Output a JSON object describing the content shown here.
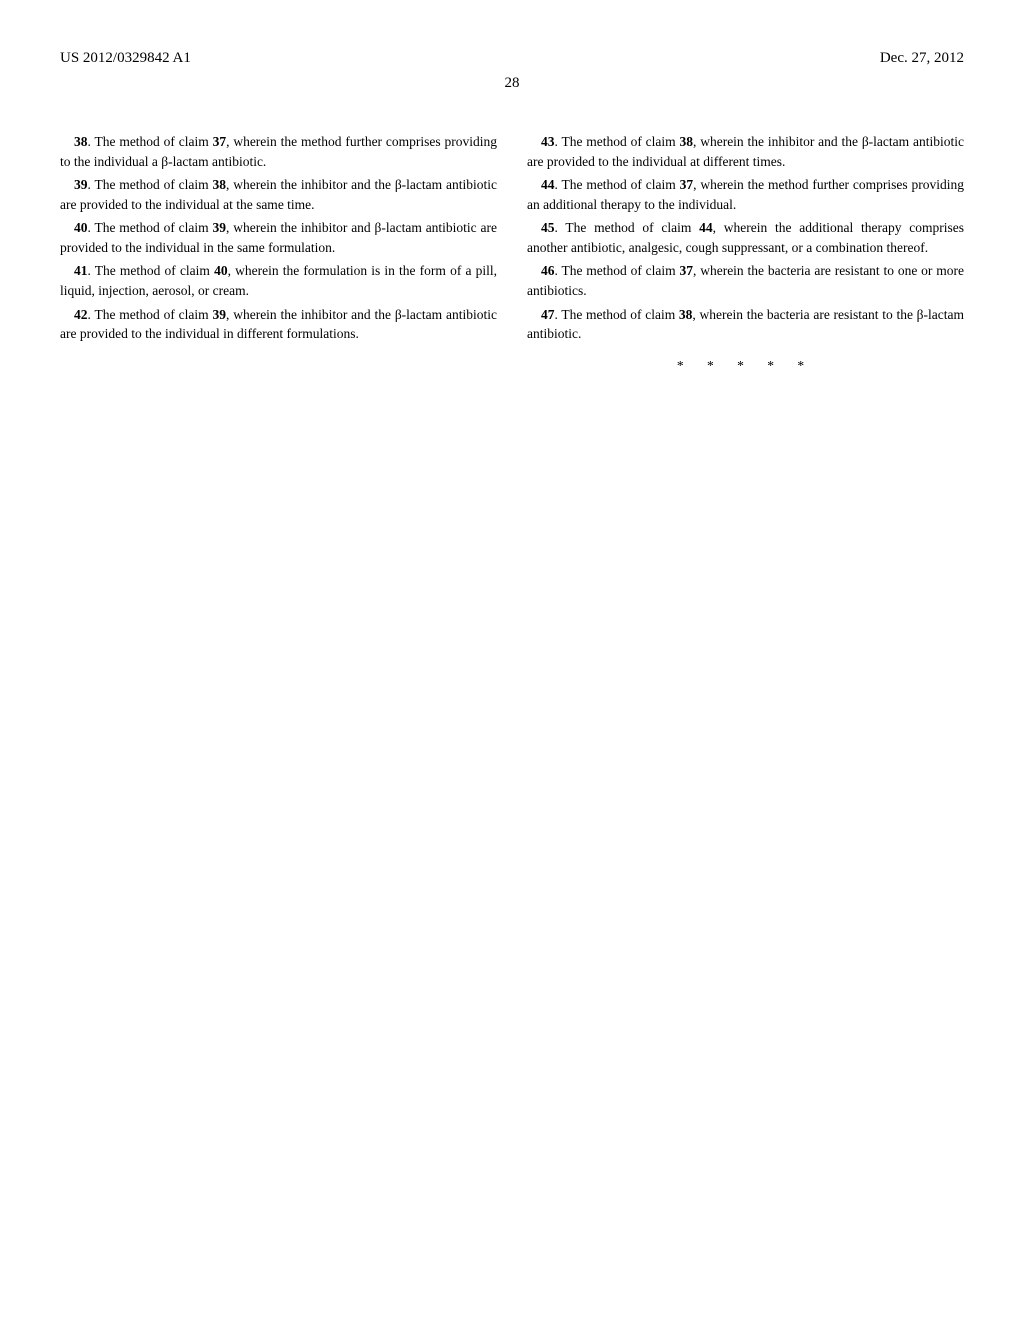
{
  "header": {
    "pub_number": "US 2012/0329842 A1",
    "pub_date": "Dec. 27, 2012"
  },
  "page_number": "28",
  "claims": [
    {
      "num": "38",
      "text": ". The method of claim ",
      "ref": "37",
      "tail": ", wherein the method further comprises providing to the individual a β-lactam antibiotic."
    },
    {
      "num": "39",
      "text": ". The method of claim ",
      "ref": "38",
      "tail": ", wherein the inhibitor and the β-lactam antibiotic are provided to the individual at the same time."
    },
    {
      "num": "40",
      "text": ". The method of claim ",
      "ref": "39",
      "tail": ", wherein the inhibitor and β-lactam antibiotic are provided to the individual in the same formulation."
    },
    {
      "num": "41",
      "text": ". The method of claim ",
      "ref": "40",
      "tail": ", wherein the formulation is in the form of a pill, liquid, injection, aerosol, or cream."
    },
    {
      "num": "42",
      "text": ". The method of claim ",
      "ref": "39",
      "tail": ", wherein the inhibitor and the β-lactam antibiotic are provided to the individual in different formulations."
    },
    {
      "num": "43",
      "text": ". The method of claim ",
      "ref": "38",
      "tail": ", wherein the inhibitor and the β-lactam antibiotic are provided to the individual at different times."
    },
    {
      "num": "44",
      "text": ". The method of claim ",
      "ref": "37",
      "tail": ", wherein the method further comprises providing an additional therapy to the individual."
    },
    {
      "num": "45",
      "text": ". The method of claim ",
      "ref": "44",
      "tail": ", wherein the additional therapy comprises another antibiotic, analgesic, cough suppressant, or a combination thereof."
    },
    {
      "num": "46",
      "text": ". The method of claim ",
      "ref": "37",
      "tail": ", wherein the bacteria are resistant to one or more antibiotics."
    },
    {
      "num": "47",
      "text": ". The method of claim ",
      "ref": "38",
      "tail": ", wherein the bacteria are resistant to the β-lactam antibiotic."
    }
  ],
  "end_marker": "* * * * *"
}
